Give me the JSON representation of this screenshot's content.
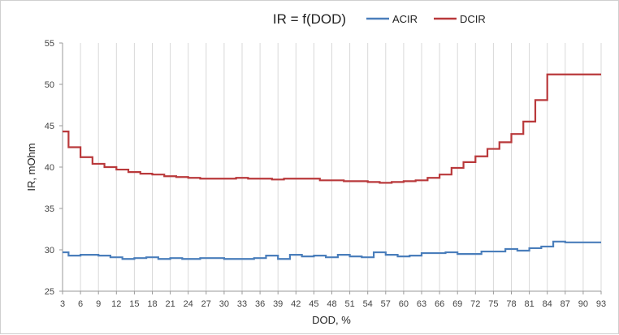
{
  "chart_data": {
    "type": "line",
    "title": "IR = f(DOD)",
    "xlabel": "DOD, %",
    "ylabel": "IR, mOhm",
    "xlim": [
      3,
      93
    ],
    "ylim": [
      25,
      55
    ],
    "x_ticks": [
      3,
      6,
      9,
      12,
      15,
      18,
      21,
      24,
      27,
      30,
      33,
      36,
      39,
      42,
      45,
      48,
      51,
      54,
      57,
      60,
      63,
      66,
      69,
      72,
      75,
      78,
      81,
      84,
      87,
      90,
      93
    ],
    "y_ticks": [
      25,
      30,
      35,
      40,
      45,
      50,
      55
    ],
    "grid": "vertical",
    "legend_position": "top-right",
    "step": true,
    "x": [
      3,
      4,
      5,
      6,
      7,
      8,
      9,
      10,
      11,
      12,
      13,
      14,
      15,
      16,
      17,
      18,
      19,
      20,
      21,
      22,
      23,
      24,
      25,
      26,
      27,
      28,
      29,
      30,
      31,
      32,
      33,
      34,
      35,
      36,
      37,
      38,
      39,
      40,
      41,
      42,
      43,
      44,
      45,
      46,
      47,
      48,
      49,
      50,
      51,
      52,
      53,
      54,
      55,
      56,
      57,
      58,
      59,
      60,
      61,
      62,
      63,
      64,
      65,
      66,
      67,
      68,
      69,
      70,
      71,
      72,
      73,
      74,
      75,
      76,
      77,
      78,
      79,
      80,
      81,
      82,
      83,
      84,
      85,
      86,
      87,
      88,
      89,
      90,
      91,
      92,
      93
    ],
    "series": [
      {
        "name": "ACIR",
        "color": "#4a7ebb",
        "values": [
          29.7,
          29.3,
          29.3,
          29.4,
          29.4,
          29.4,
          29.3,
          29.3,
          29.1,
          29.1,
          28.9,
          28.9,
          29.0,
          29.0,
          29.1,
          29.1,
          28.9,
          28.9,
          29.0,
          29.0,
          28.9,
          28.9,
          28.9,
          29.0,
          29.0,
          29.0,
          29.0,
          28.9,
          28.9,
          28.9,
          28.9,
          28.9,
          29.0,
          29.0,
          29.3,
          29.3,
          28.9,
          28.9,
          29.4,
          29.4,
          29.2,
          29.2,
          29.3,
          29.3,
          29.1,
          29.1,
          29.4,
          29.4,
          29.2,
          29.2,
          29.1,
          29.1,
          29.7,
          29.7,
          29.4,
          29.4,
          29.2,
          29.2,
          29.3,
          29.3,
          29.6,
          29.6,
          29.6,
          29.6,
          29.7,
          29.7,
          29.5,
          29.5,
          29.5,
          29.5,
          29.8,
          29.8,
          29.8,
          29.8,
          30.1,
          30.1,
          29.9,
          29.9,
          30.2,
          30.2,
          30.4,
          30.4,
          31.0,
          31.0,
          30.9,
          30.9,
          30.9,
          30.9,
          30.9,
          30.9,
          30.9
        ]
      },
      {
        "name": "DCIR",
        "color": "#b9393b",
        "values": [
          44.3,
          42.4,
          42.4,
          41.2,
          41.2,
          40.4,
          40.4,
          40.0,
          40.0,
          39.7,
          39.7,
          39.4,
          39.4,
          39.2,
          39.2,
          39.1,
          39.1,
          38.9,
          38.9,
          38.8,
          38.8,
          38.7,
          38.7,
          38.6,
          38.6,
          38.6,
          38.6,
          38.6,
          38.6,
          38.7,
          38.7,
          38.6,
          38.6,
          38.6,
          38.6,
          38.5,
          38.5,
          38.6,
          38.6,
          38.6,
          38.6,
          38.6,
          38.6,
          38.4,
          38.4,
          38.4,
          38.4,
          38.3,
          38.3,
          38.3,
          38.3,
          38.2,
          38.2,
          38.1,
          38.1,
          38.2,
          38.2,
          38.3,
          38.3,
          38.4,
          38.4,
          38.7,
          38.7,
          39.1,
          39.1,
          39.9,
          39.9,
          40.6,
          40.6,
          41.3,
          41.3,
          42.2,
          42.2,
          43.0,
          43.0,
          44.0,
          44.0,
          45.5,
          45.5,
          48.1,
          48.1,
          51.2,
          51.2,
          51.2,
          51.2,
          51.2,
          51.2,
          51.2,
          51.2,
          51.2,
          51.2
        ]
      }
    ]
  }
}
